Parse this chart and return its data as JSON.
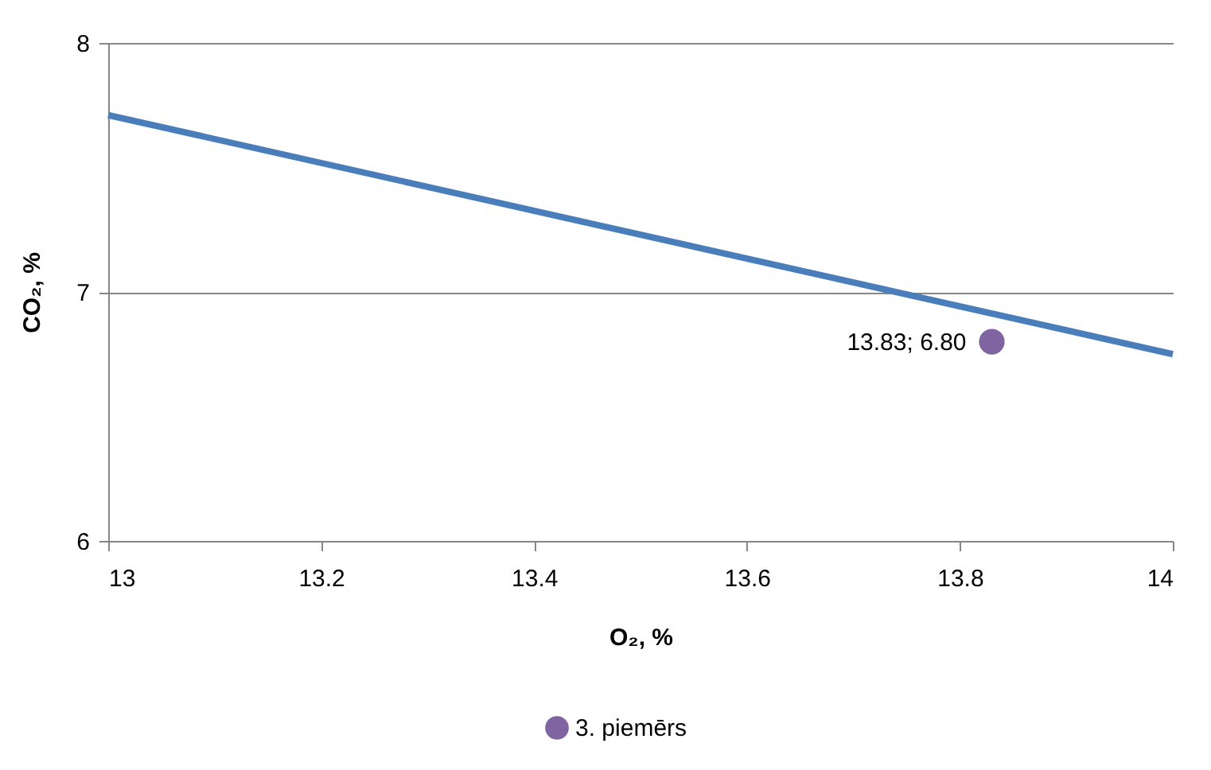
{
  "chart_data": {
    "type": "scatter",
    "xlabel": "O₂, %",
    "ylabel": "CO₂, %",
    "xlim": [
      13,
      14
    ],
    "xticks": [
      13,
      13.2,
      13.4,
      13.6,
      13.8,
      14
    ],
    "ylim": [
      6,
      8
    ],
    "yticks": [
      6,
      7,
      8
    ],
    "grid": "y",
    "legend": "bottom",
    "series": [
      {
        "type": "line",
        "color": "#4a7ebb",
        "x": [
          13,
          14
        ],
        "values": [
          7.71,
          6.75
        ],
        "line_style": "solid"
      },
      {
        "name": "3. piemērs",
        "marker": "circle",
        "color": "#8064a2",
        "x": [
          13.83
        ],
        "values": [
          6.8
        ],
        "value_labels": [
          "13.83; 6.80"
        ]
      }
    ]
  }
}
